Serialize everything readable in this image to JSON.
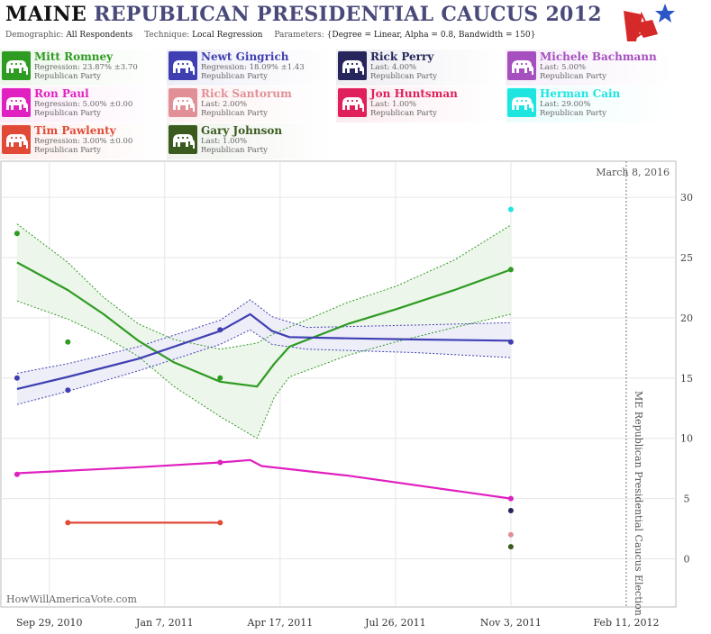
{
  "header": {
    "state": "MAINE",
    "title_rest": "REPUBLICAN PRESIDENTIAL CAUCUS 2012",
    "demographic_label": "Demographic:",
    "demographic_value": "All Respondents",
    "technique_label": "Technique:",
    "technique_value": "Local Regression",
    "parameters_label": "Parameters:",
    "parameters_value": "{Degree = Linear, Alpha = 0.8, Bandwidth = 150}"
  },
  "logo": {
    "icon": "star-flag-logo-icon",
    "red": "#d62a2a",
    "blue": "#2a56c6"
  },
  "legend": [
    {
      "name": "Mitt Romney",
      "stat": "Regression: 23.87% ±3.70",
      "party": "Republican Party",
      "color": "#2e9b23",
      "bg": "#eef7ec"
    },
    {
      "name": "Newt Gingrich",
      "stat": "Regression: 18.09% ±1.43",
      "party": "Republican Party",
      "color": "#3f3fb3",
      "bg": "#eeeef8"
    },
    {
      "name": "Rick Perry",
      "stat": "Last: 4.00%",
      "party": "Republican Party",
      "color": "#26265c",
      "bg": "#ededf2"
    },
    {
      "name": "Michele Bachmann",
      "stat": "Last: 5.00%",
      "party": "Republican Party",
      "color": "#a64fbf",
      "bg": "#f6eef9"
    },
    {
      "name": "Ron Paul",
      "stat": "Regression: 5.00% ±0.00",
      "party": "Republican Party",
      "color": "#e020c0",
      "bg": "#fcecf9"
    },
    {
      "name": "Rick Santorum",
      "stat": "Last: 2.00%",
      "party": "Republican Party",
      "color": "#e09096",
      "bg": "#fcf1f2"
    },
    {
      "name": "Jon Huntsman",
      "stat": "Last: 1.00%",
      "party": "Republican Party",
      "color": "#e0205a",
      "bg": "#fcecf0"
    },
    {
      "name": "Herman Cain",
      "stat": "Last: 29.00%",
      "party": "Republican Party",
      "color": "#1fe5e0",
      "bg": "#ebfcfc"
    },
    {
      "name": "Tim Pawlenty",
      "stat": "Regression: 3.00% ±0.00",
      "party": "Republican Party",
      "color": "#e04a36",
      "bg": "#fcefed"
    },
    {
      "name": "Gary Johnson",
      "stat": "Last: 1.00%",
      "party": "Republican Party",
      "color": "#3a5a1e",
      "bg": "#eff2ec"
    }
  ],
  "chart_data": {
    "type": "line",
    "date_label": "March 8, 2016",
    "watermark": "HowWillAmericaVote.com",
    "election_label": "ME Republican Presidential Caucus Election",
    "election_date": "2012-02-11",
    "x_range": [
      "2010-08-18",
      "2012-03-25"
    ],
    "y_range": [
      -4,
      33
    ],
    "y_ticks": [
      0,
      5,
      10,
      15,
      20,
      25,
      30
    ],
    "x_ticks": [
      {
        "date": "2010-09-29",
        "label": "Sep 29, 2010"
      },
      {
        "date": "2011-01-07",
        "label": "Jan 7, 2011"
      },
      {
        "date": "2011-04-17",
        "label": "Apr 17, 2011"
      },
      {
        "date": "2011-07-26",
        "label": "Jul 26, 2011"
      },
      {
        "date": "2011-11-03",
        "label": "Nov 3, 2011"
      },
      {
        "date": "2012-02-11",
        "label": "Feb 11, 2012"
      }
    ],
    "series": [
      {
        "name": "Mitt Romney",
        "color": "#2e9b23",
        "band_fill": "#edf6ea",
        "points": [
          [
            "2010-09-01",
            27
          ],
          [
            "2010-10-15",
            18
          ],
          [
            "2011-02-24",
            15
          ],
          [
            "2011-11-03",
            24
          ]
        ],
        "line": [
          [
            "2010-09-01",
            24.6
          ],
          [
            "2010-10-15",
            22.3
          ],
          [
            "2010-11-15",
            20.3
          ],
          [
            "2010-12-15",
            18.1
          ],
          [
            "2011-01-15",
            16.3
          ],
          [
            "2011-02-24",
            14.7
          ],
          [
            "2011-03-28",
            14.3
          ],
          [
            "2011-04-12",
            16.2
          ],
          [
            "2011-04-25",
            17.6
          ],
          [
            "2011-06-15",
            19.5
          ],
          [
            "2011-07-26",
            20.7
          ],
          [
            "2011-09-15",
            22.3
          ],
          [
            "2011-11-03",
            24.0
          ]
        ],
        "upper": [
          [
            "2010-09-01",
            27.8
          ],
          [
            "2010-10-15",
            24.6
          ],
          [
            "2010-11-15",
            21.7
          ],
          [
            "2010-12-15",
            19.5
          ],
          [
            "2011-01-15",
            18.2
          ],
          [
            "2011-02-24",
            17.4
          ],
          [
            "2011-03-28",
            17.9
          ],
          [
            "2011-04-12",
            18.7
          ],
          [
            "2011-06-15",
            21.3
          ],
          [
            "2011-07-26",
            22.6
          ],
          [
            "2011-09-15",
            24.8
          ],
          [
            "2011-11-03",
            27.7
          ]
        ],
        "lower": [
          [
            "2010-09-01",
            21.4
          ],
          [
            "2010-10-15",
            19.9
          ],
          [
            "2010-11-15",
            18.5
          ],
          [
            "2010-12-15",
            16.8
          ],
          [
            "2011-01-15",
            14.3
          ],
          [
            "2011-02-24",
            11.8
          ],
          [
            "2011-03-28",
            10.0
          ],
          [
            "2011-04-12",
            13.4
          ],
          [
            "2011-04-25",
            15.1
          ],
          [
            "2011-06-15",
            16.9
          ],
          [
            "2011-07-26",
            18.0
          ],
          [
            "2011-09-15",
            19.2
          ],
          [
            "2011-11-03",
            20.3
          ]
        ]
      },
      {
        "name": "Newt Gingrich",
        "color": "#3f3fb3",
        "band_fill": "#eeeef8",
        "points": [
          [
            "2010-09-01",
            15
          ],
          [
            "2010-10-15",
            14
          ],
          [
            "2011-02-24",
            19
          ],
          [
            "2011-11-03",
            18
          ]
        ],
        "line": [
          [
            "2010-09-01",
            14.1
          ],
          [
            "2010-10-15",
            15.1
          ],
          [
            "2010-12-15",
            16.6
          ],
          [
            "2011-02-24",
            18.9
          ],
          [
            "2011-03-22",
            20.3
          ],
          [
            "2011-04-10",
            18.9
          ],
          [
            "2011-04-25",
            18.4
          ],
          [
            "2011-06-15",
            18.3
          ],
          [
            "2011-08-15",
            18.2
          ],
          [
            "2011-11-03",
            18.1
          ]
        ],
        "upper": [
          [
            "2010-09-01",
            15.4
          ],
          [
            "2010-10-15",
            16.2
          ],
          [
            "2010-12-15",
            17.6
          ],
          [
            "2011-02-24",
            19.8
          ],
          [
            "2011-03-22",
            21.5
          ],
          [
            "2011-04-10",
            20.1
          ],
          [
            "2011-05-10",
            19.2
          ],
          [
            "2011-08-15",
            19.4
          ],
          [
            "2011-11-03",
            19.6
          ]
        ],
        "lower": [
          [
            "2010-09-01",
            12.8
          ],
          [
            "2010-10-15",
            13.9
          ],
          [
            "2010-12-15",
            15.6
          ],
          [
            "2011-02-24",
            17.8
          ],
          [
            "2011-03-22",
            19.0
          ],
          [
            "2011-04-10",
            17.8
          ],
          [
            "2011-05-10",
            17.4
          ],
          [
            "2011-08-15",
            17.1
          ],
          [
            "2011-11-03",
            16.7
          ]
        ]
      },
      {
        "name": "Ron Paul",
        "color": "#e020c0",
        "points": [
          [
            "2010-09-01",
            7
          ],
          [
            "2011-02-24",
            8
          ],
          [
            "2011-11-03",
            5
          ]
        ],
        "line": [
          [
            "2010-09-01",
            7.1
          ],
          [
            "2010-12-15",
            7.6
          ],
          [
            "2011-02-24",
            8.0
          ],
          [
            "2011-03-22",
            8.2
          ],
          [
            "2011-04-01",
            7.7
          ],
          [
            "2011-06-15",
            6.9
          ],
          [
            "2011-11-03",
            5.0
          ]
        ]
      },
      {
        "name": "Tim Pawlenty",
        "color": "#e04a36",
        "points": [
          [
            "2010-10-15",
            3
          ],
          [
            "2011-02-24",
            3
          ]
        ],
        "line": [
          [
            "2010-10-15",
            3
          ],
          [
            "2011-02-24",
            3
          ]
        ]
      },
      {
        "name": "Herman Cain",
        "color": "#1fe5e0",
        "points": [
          [
            "2011-11-03",
            29
          ]
        ]
      },
      {
        "name": "Rick Perry",
        "color": "#26265c",
        "points": [
          [
            "2011-11-03",
            4
          ]
        ]
      },
      {
        "name": "Rick Santorum",
        "color": "#e09096",
        "points": [
          [
            "2011-11-03",
            2
          ]
        ]
      },
      {
        "name": "Gary Johnson",
        "color": "#3a5a1e",
        "points": [
          [
            "2011-11-03",
            1
          ]
        ]
      }
    ]
  }
}
